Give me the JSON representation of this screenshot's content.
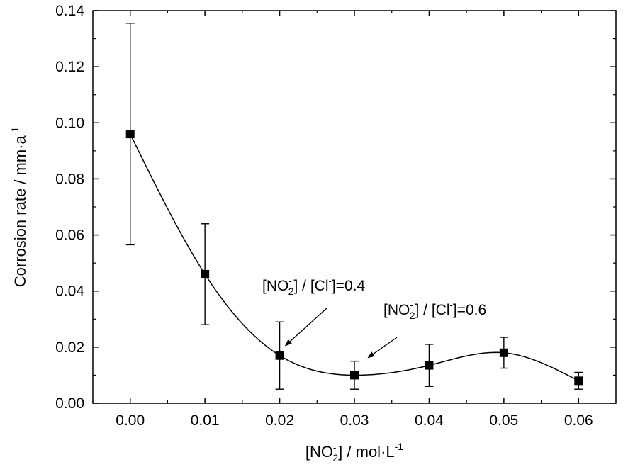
{
  "chart_data": {
    "type": "scatter",
    "x": [
      0.0,
      0.01,
      0.02,
      0.03,
      0.04,
      0.05,
      0.06
    ],
    "series": [
      {
        "values": [
          0.096,
          0.046,
          0.017,
          0.01,
          0.0135,
          0.018,
          0.008
        ],
        "error": [
          0.0395,
          0.018,
          0.012,
          0.005,
          0.0075,
          0.0055,
          0.003
        ],
        "marker": "square",
        "color": "#000000",
        "fit_curve": true
      }
    ],
    "xlim": [
      -0.005,
      0.065
    ],
    "ylim": [
      0.0,
      0.14
    ],
    "xticks": [
      "0.00",
      "0.01",
      "0.02",
      "0.03",
      "0.04",
      "0.05",
      "0.06"
    ],
    "yticks": [
      "0.00",
      "0.02",
      "0.04",
      "0.06",
      "0.08",
      "0.10",
      "0.12",
      "0.14"
    ],
    "xlabel": {
      "pre": "[NO",
      "sup": "-",
      "sub": "2",
      "post": "] / mol·L",
      "unit_sup": "-1"
    },
    "ylabel": {
      "text": "Corrosion rate / mm·a",
      "sup": "-1"
    },
    "annotations": [
      {
        "pre": "[NO",
        "sup": "-",
        "sub": "2",
        "mid": "] / [Cl",
        "sup2": "-",
        "post": "]=0.4",
        "x": 0.02,
        "y": 0.02
      },
      {
        "pre": "[NO",
        "sup": "-",
        "sub": "2",
        "mid": "] / [Cl",
        "sup2": "-",
        "post": "]=0.6",
        "x": 0.0305,
        "y": 0.0155
      }
    ],
    "grid": false
  }
}
